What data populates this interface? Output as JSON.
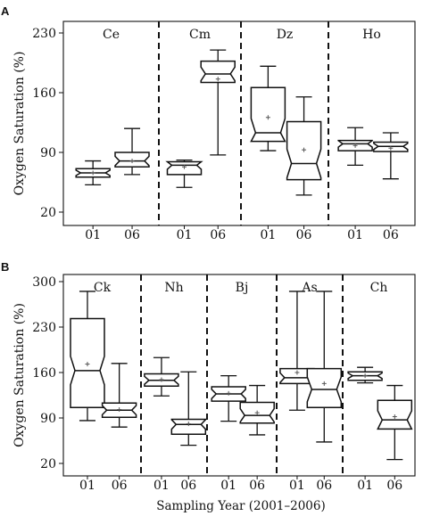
{
  "figure": {
    "shared_xlabel": "Sampling Year (2001–2006)"
  },
  "chart_data": [
    {
      "type": "boxplot",
      "panel_label": "A",
      "ylabel": "Oxygen Saturation (%)",
      "ylim": [
        20,
        230
      ],
      "yticks": [
        20,
        90,
        160,
        230
      ],
      "grid": false,
      "notched": true,
      "mean_marker": "plus",
      "groups": [
        {
          "name": "Ce",
          "boxes": [
            {
              "x": "01",
              "min": 52,
              "q1": 61,
              "median": 66,
              "q3": 71,
              "max": 80,
              "mean": 66
            },
            {
              "x": "06",
              "min": 64,
              "q1": 73,
              "median": 80,
              "q3": 90,
              "max": 118,
              "mean": 80
            }
          ]
        },
        {
          "name": "Cm",
          "boxes": [
            {
              "x": "01",
              "min": 49,
              "q1": 64,
              "median": 75,
              "q3": 79,
              "max": 81,
              "mean": 73
            },
            {
              "x": "06",
              "min": 87,
              "q1": 172,
              "median": 182,
              "q3": 197,
              "max": 210,
              "mean": 176
            }
          ]
        },
        {
          "name": "Dz",
          "boxes": [
            {
              "x": "01",
              "min": 92,
              "q1": 103,
              "median": 113,
              "q3": 166,
              "max": 191,
              "mean": 131
            },
            {
              "x": "06",
              "min": 40,
              "q1": 58,
              "median": 77,
              "q3": 126,
              "max": 155,
              "mean": 93
            }
          ]
        },
        {
          "name": "Ho",
          "boxes": [
            {
              "x": "01",
              "min": 75,
              "q1": 92,
              "median": 100,
              "q3": 104,
              "max": 119,
              "mean": 98
            },
            {
              "x": "06",
              "min": 59,
              "q1": 91,
              "median": 97,
              "q3": 102,
              "max": 113,
              "mean": 95
            }
          ]
        }
      ]
    },
    {
      "type": "boxplot",
      "panel_label": "B",
      "ylabel": "Oxygen Saturation (%)",
      "ylim": [
        20,
        300
      ],
      "yticks": [
        20,
        90,
        160,
        230,
        300
      ],
      "grid": false,
      "notched": true,
      "mean_marker": "plus",
      "groups": [
        {
          "name": "Ck",
          "boxes": [
            {
              "x": "01",
              "min": 86,
              "q1": 106,
              "median": 163,
              "q3": 243,
              "max": 285,
              "mean": 173
            },
            {
              "x": "06",
              "min": 76,
              "q1": 91,
              "median": 102,
              "q3": 113,
              "max": 174,
              "mean": 103
            }
          ]
        },
        {
          "name": "Nh",
          "boxes": [
            {
              "x": "01",
              "min": 124,
              "q1": 139,
              "median": 148,
              "q3": 158,
              "max": 183,
              "mean": 149
            },
            {
              "x": "06",
              "min": 48,
              "q1": 65,
              "median": 80,
              "q3": 88,
              "max": 161,
              "mean": 81
            }
          ]
        },
        {
          "name": "Bj",
          "boxes": [
            {
              "x": "01",
              "min": 85,
              "q1": 116,
              "median": 127,
              "q3": 138,
              "max": 155,
              "mean": 128
            },
            {
              "x": "06",
              "min": 64,
              "q1": 82,
              "median": 94,
              "q3": 114,
              "max": 140,
              "mean": 98
            }
          ]
        },
        {
          "name": "As",
          "boxes": [
            {
              "x": "01",
              "min": 102,
              "q1": 143,
              "median": 152,
              "q3": 166,
              "max": 285,
              "mean": 160
            },
            {
              "x": "06",
              "min": 53,
              "q1": 106,
              "median": 134,
              "q3": 166,
              "max": 285,
              "mean": 143
            }
          ]
        },
        {
          "name": "Ch",
          "boxes": [
            {
              "x": "01",
              "min": 144,
              "q1": 148,
              "median": 155,
              "q3": 161,
              "max": 168,
              "mean": 155
            },
            {
              "x": "06",
              "min": 26,
              "q1": 73,
              "median": 87,
              "q3": 117,
              "max": 140,
              "mean": 92
            }
          ]
        }
      ]
    }
  ]
}
